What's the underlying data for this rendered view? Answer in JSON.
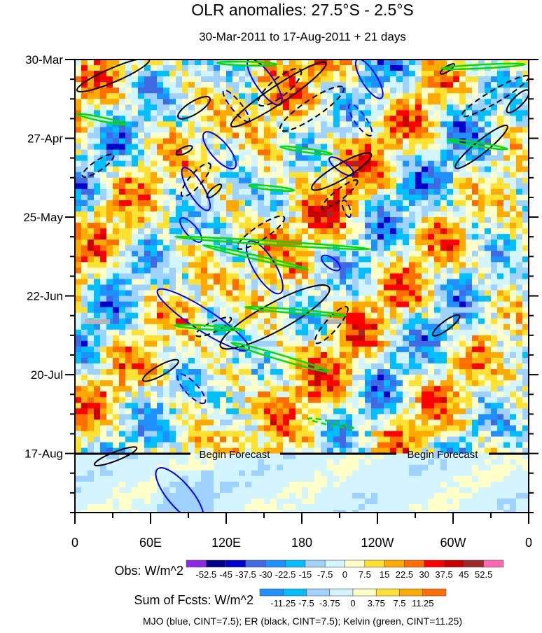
{
  "chart_data": {
    "type": "heatmap",
    "title": "OLR anomalies: 27.5°S - 2.5°S",
    "subtitle": "30-Mar-2011 to 17-Aug-2011 + 21 days",
    "x_ticks": [
      {
        "lon": 0,
        "label": "0"
      },
      {
        "lon": 60,
        "label": "60E"
      },
      {
        "lon": 120,
        "label": "120E"
      },
      {
        "lon": 180,
        "label": "180"
      },
      {
        "lon": 240,
        "label": "120W"
      },
      {
        "lon": 300,
        "label": "60W"
      },
      {
        "lon": 360,
        "label": "0"
      }
    ],
    "xlim": [
      0,
      360
    ],
    "y_ticks": [
      {
        "day": 0,
        "label": "30-Mar"
      },
      {
        "day": 28,
        "label": "27-Apr"
      },
      {
        "day": 56,
        "label": "25-May"
      },
      {
        "day": 84,
        "label": "22-Jun"
      },
      {
        "day": 112,
        "label": "20-Jul"
      },
      {
        "day": 140,
        "label": "17-Aug"
      }
    ],
    "ylim_days": [
      0,
      161
    ],
    "forecast_start_day": 140,
    "forecast_label": "Begin Forecast",
    "obs_colorbar": {
      "title": "Obs: W/m^2",
      "levels": [
        "-52.5",
        "-45",
        "-37.5",
        "-30",
        "-22.5",
        "-15",
        "-7.5",
        "0",
        "7.5",
        "15",
        "22.5",
        "30",
        "37.5",
        "45",
        "52.5"
      ],
      "colors": [
        "#8a2be2",
        "#00008b",
        "#0000cd",
        "#4169e1",
        "#1e90ff",
        "#00bfff",
        "#a0d2ff",
        "#d2f5ff",
        "#ffffc8",
        "#ffe132",
        "#ffaa00",
        "#ff6e00",
        "#ff0000",
        "#c80000",
        "#a02828",
        "#ff69b4"
      ]
    },
    "fcst_colorbar": {
      "title": "Sum of Fcsts: W/m^2",
      "levels": [
        "-11.25",
        "-7.5",
        "-3.75",
        "0",
        "3.75",
        "7.5",
        "11.25"
      ],
      "colors": [
        "#1e90ff",
        "#00bfff",
        "#a0d2ff",
        "#d2f5ff",
        "#ffffc8",
        "#ffe132",
        "#ffaa00",
        "#ff6e00"
      ]
    },
    "footnote": "MJO (blue, CINT=7.5); ER (black, CINT=7.5); Kelvin (green, CINT=11.25)",
    "contour_colors": {
      "mjo": "#0000ff",
      "er": "#000000",
      "kelvin": "#00e000"
    },
    "contours": [
      {
        "type": "mjo",
        "dash": false,
        "p": [
          65.6,
          82,
          137.8,
          103
        ],
        "w": 17
      },
      {
        "type": "mjo",
        "dash": false,
        "p": [
          65.6,
          145.5,
          100.6,
          164
        ],
        "w": 19
      },
      {
        "type": "mjo",
        "dash": false,
        "p": [
          102.8,
          26,
          126.7,
          38.5
        ],
        "w": 14
      },
      {
        "type": "mjo",
        "dash": false,
        "p": [
          86,
          38.5,
          106,
          53.5
        ],
        "w": 12
      },
      {
        "type": "mjo",
        "dash": false,
        "p": [
          84,
          56.5,
          100,
          64.7
        ],
        "w": 9
      },
      {
        "type": "mjo",
        "dash": false,
        "p": [
          138,
          64.7,
          163,
          83
        ],
        "w": 17
      },
      {
        "type": "mjo",
        "dash": false,
        "p": [
          138,
          0,
          163,
          16
        ],
        "w": 14
      },
      {
        "type": "mjo",
        "dash": false,
        "p": [
          224,
          0,
          243,
          13.7
        ],
        "w": 12
      },
      {
        "type": "mjo",
        "dash": true,
        "p": [
          218,
          16,
          235,
          27
        ],
        "w": 9
      },
      {
        "type": "mjo",
        "dash": true,
        "p": [
          118,
          11,
          138,
          22
        ],
        "w": 8
      },
      {
        "type": "mjo",
        "dash": true,
        "p": [
          82,
          112,
          103,
          122
        ],
        "w": 10
      },
      {
        "type": "mjo",
        "dash": false,
        "p": [
          196,
          70,
          210,
          74.6
        ],
        "w": 8
      },
      {
        "type": "mjo",
        "dash": false,
        "p": [
          202,
          35,
          221,
          41
        ],
        "w": 8
      },
      {
        "type": "mjo",
        "dash": true,
        "p": [
          213,
          50,
          218,
          56
        ],
        "w": 5
      },
      {
        "type": "er",
        "dash": false,
        "p": [
          1.7,
          11,
          59,
          0
        ],
        "w": 11
      },
      {
        "type": "er",
        "dash": false,
        "p": [
          82,
          20.6,
          107,
          13.7
        ],
        "w": 10
      },
      {
        "type": "er",
        "dash": false,
        "p": [
          124,
          23.6,
          199,
          1.2
        ],
        "w": 14
      },
      {
        "type": "er",
        "dash": false,
        "p": [
          188,
          46,
          235,
          33.6
        ],
        "w": 12
      },
      {
        "type": "er",
        "dash": false,
        "p": [
          302,
          38.5,
          343,
          23.6
        ],
        "w": 10
      },
      {
        "type": "er",
        "dash": false,
        "p": [
          343,
          18.7,
          360,
          11
        ],
        "w": 8
      },
      {
        "type": "er",
        "dash": false,
        "p": [
          115.6,
          102,
          201.7,
          81
        ],
        "w": 22
      },
      {
        "type": "er",
        "dash": false,
        "p": [
          54,
          114,
          82,
          107
        ],
        "w": 8
      },
      {
        "type": "er",
        "dash": false,
        "p": [
          284,
          98,
          305,
          91
        ],
        "w": 7
      },
      {
        "type": "er",
        "dash": false,
        "p": [
          15.5,
          144,
          49,
          138
        ],
        "w": 7
      },
      {
        "type": "er",
        "dash": false,
        "p": [
          105,
          49,
          116,
          44.5
        ],
        "w": 5
      },
      {
        "type": "er",
        "dash": false,
        "p": [
          80.5,
          33.6,
          93,
          31
        ],
        "w": 5
      },
      {
        "type": "er",
        "dash": false,
        "p": [
          290,
          5,
          301,
          1.7
        ],
        "w": 4
      },
      {
        "type": "er",
        "dash": true,
        "p": [
          163,
          25,
          213,
          10
        ],
        "w": 14
      },
      {
        "type": "er",
        "dash": true,
        "p": [
          146,
          16,
          179,
          3.7
        ],
        "w": 14
      },
      {
        "type": "er",
        "dash": true,
        "p": [
          6,
          41.5,
          30.6,
          34
        ],
        "w": 8
      },
      {
        "type": "er",
        "dash": true,
        "p": [
          307,
          20,
          360,
          6
        ],
        "w": 10
      },
      {
        "type": "er",
        "dash": true,
        "p": [
          129,
          67,
          166,
          56
        ],
        "w": 11
      },
      {
        "type": "er",
        "dash": true,
        "p": [
          85,
          48.5,
          107,
          37
        ],
        "w": 10
      },
      {
        "type": "er",
        "dash": true,
        "p": [
          96,
          98,
          124,
          92
        ],
        "w": 8
      },
      {
        "type": "er",
        "dash": true,
        "p": [
          191,
          100.7,
          216,
          88
        ],
        "w": 10
      },
      {
        "type": "er",
        "dash": true,
        "p": [
          196,
          53,
          224,
          43
        ],
        "w": 8
      },
      {
        "type": "kelvin",
        "dash": false,
        "p": [
          79.4,
          63,
          235,
          67.4
        ],
        "w": 3
      },
      {
        "type": "kelvin",
        "dash": false,
        "p": [
          101.7,
          66,
          185,
          74.6
        ],
        "w": 3
      },
      {
        "type": "kelvin",
        "dash": false,
        "p": [
          124,
          100.7,
          201.7,
          111
        ],
        "w": 4
      },
      {
        "type": "kelvin",
        "dash": false,
        "p": [
          135,
          88,
          215,
          91
        ],
        "w": 3
      },
      {
        "type": "kelvin",
        "dash": false,
        "p": [
          1.7,
          19.4,
          40.6,
          23
        ],
        "w": 3
      },
      {
        "type": "kelvin",
        "dash": false,
        "p": [
          296,
          28.6,
          343,
          31.8
        ],
        "w": 3
      },
      {
        "type": "kelvin",
        "dash": false,
        "p": [
          113,
          1.2,
          160,
          1.7
        ],
        "w": 3
      },
      {
        "type": "kelvin",
        "dash": false,
        "p": [
          290.6,
          3.2,
          357,
          1.7
        ],
        "w": 3
      },
      {
        "type": "kelvin",
        "dash": false,
        "p": [
          138,
          44.8,
          174,
          46.5
        ],
        "w": 3
      },
      {
        "type": "kelvin",
        "dash": false,
        "p": [
          163,
          31,
          204,
          33.6
        ],
        "w": 3
      },
      {
        "type": "kelvin",
        "dash": true,
        "p": [
          185,
          127.6,
          221,
          131
        ],
        "w": 3
      },
      {
        "type": "kelvin",
        "dash": false,
        "p": [
          79,
          94.5,
          132,
          96
        ],
        "w": 3
      }
    ]
  }
}
